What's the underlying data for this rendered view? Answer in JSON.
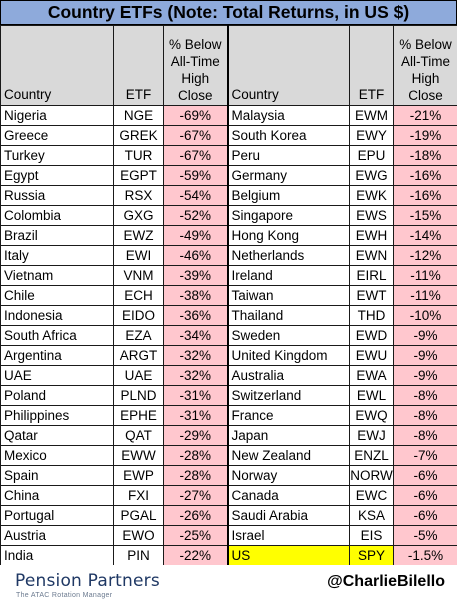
{
  "title": "Country ETFs (Note: Total Returns, in US $)",
  "headers": {
    "country": "Country",
    "etf": "ETF",
    "pct": [
      "% Below",
      "All-Time",
      "High",
      "Close"
    ]
  },
  "left": [
    {
      "country": "Nigeria",
      "etf": "NGE",
      "pct": "-69%"
    },
    {
      "country": "Greece",
      "etf": "GREK",
      "pct": "-67%"
    },
    {
      "country": "Turkey",
      "etf": "TUR",
      "pct": "-67%"
    },
    {
      "country": "Egypt",
      "etf": "EGPT",
      "pct": "-59%"
    },
    {
      "country": "Russia",
      "etf": "RSX",
      "pct": "-54%"
    },
    {
      "country": "Colombia",
      "etf": "GXG",
      "pct": "-52%"
    },
    {
      "country": "Brazil",
      "etf": "EWZ",
      "pct": "-49%"
    },
    {
      "country": "Italy",
      "etf": "EWI",
      "pct": "-46%"
    },
    {
      "country": "Vietnam",
      "etf": "VNM",
      "pct": "-39%"
    },
    {
      "country": "Chile",
      "etf": "ECH",
      "pct": "-38%"
    },
    {
      "country": "Indonesia",
      "etf": "EIDO",
      "pct": "-36%"
    },
    {
      "country": "South Africa",
      "etf": "EZA",
      "pct": "-34%"
    },
    {
      "country": "Argentina",
      "etf": "ARGT",
      "pct": "-32%"
    },
    {
      "country": "UAE",
      "etf": "UAE",
      "pct": "-32%"
    },
    {
      "country": "Poland",
      "etf": "PLND",
      "pct": "-31%"
    },
    {
      "country": "Philippines",
      "etf": "EPHE",
      "pct": "-31%"
    },
    {
      "country": "Qatar",
      "etf": "QAT",
      "pct": "-29%"
    },
    {
      "country": "Mexico",
      "etf": "EWW",
      "pct": "-28%"
    },
    {
      "country": "Spain",
      "etf": "EWP",
      "pct": "-28%"
    },
    {
      "country": "China",
      "etf": "FXI",
      "pct": "-27%"
    },
    {
      "country": "Portugal",
      "etf": "PGAL",
      "pct": "-26%"
    },
    {
      "country": "Austria",
      "etf": "EWO",
      "pct": "-25%"
    },
    {
      "country": "India",
      "etf": "PIN",
      "pct": "-22%"
    }
  ],
  "right": [
    {
      "country": "Malaysia",
      "etf": "EWM",
      "pct": "-21%"
    },
    {
      "country": "South Korea",
      "etf": "EWY",
      "pct": "-19%"
    },
    {
      "country": "Peru",
      "etf": "EPU",
      "pct": "-18%"
    },
    {
      "country": "Germany",
      "etf": "EWG",
      "pct": "-16%"
    },
    {
      "country": "Belgium",
      "etf": "EWK",
      "pct": "-16%"
    },
    {
      "country": "Singapore",
      "etf": "EWS",
      "pct": "-15%"
    },
    {
      "country": "Hong Kong",
      "etf": "EWH",
      "pct": "-14%"
    },
    {
      "country": "Netherlands",
      "etf": "EWN",
      "pct": "-12%"
    },
    {
      "country": "Ireland",
      "etf": "EIRL",
      "pct": "-11%"
    },
    {
      "country": "Taiwan",
      "etf": "EWT",
      "pct": "-11%"
    },
    {
      "country": "Thailand",
      "etf": "THD",
      "pct": "-10%"
    },
    {
      "country": "Sweden",
      "etf": "EWD",
      "pct": "-9%"
    },
    {
      "country": "United Kingdom",
      "etf": "EWU",
      "pct": "-9%"
    },
    {
      "country": "Australia",
      "etf": "EWA",
      "pct": "-9%"
    },
    {
      "country": "Switzerland",
      "etf": "EWL",
      "pct": "-8%"
    },
    {
      "country": "France",
      "etf": "EWQ",
      "pct": "-8%"
    },
    {
      "country": "Japan",
      "etf": "EWJ",
      "pct": "-8%"
    },
    {
      "country": "New Zealand",
      "etf": "ENZL",
      "pct": "-7%"
    },
    {
      "country": "Norway",
      "etf": "NORW",
      "pct": "-6%"
    },
    {
      "country": "Canada",
      "etf": "EWC",
      "pct": "-6%"
    },
    {
      "country": "Saudi Arabia",
      "etf": "KSA",
      "pct": "-6%"
    },
    {
      "country": "Israel",
      "etf": "EIS",
      "pct": "-5%"
    },
    {
      "country": "US",
      "etf": "SPY",
      "pct": "-1.5%",
      "highlight": true
    }
  ],
  "footer": {
    "logo": "Pension Partners",
    "logo_tagline": "The ATAC Rotation Manager",
    "handle": "@CharlieBilello"
  },
  "colors": {
    "title_bg": "#8eaadb",
    "header_bg": "#d9d9d9",
    "pct_bg": "#ffc7ce",
    "pct_text": "#c00000",
    "highlight": "#ffff00"
  }
}
